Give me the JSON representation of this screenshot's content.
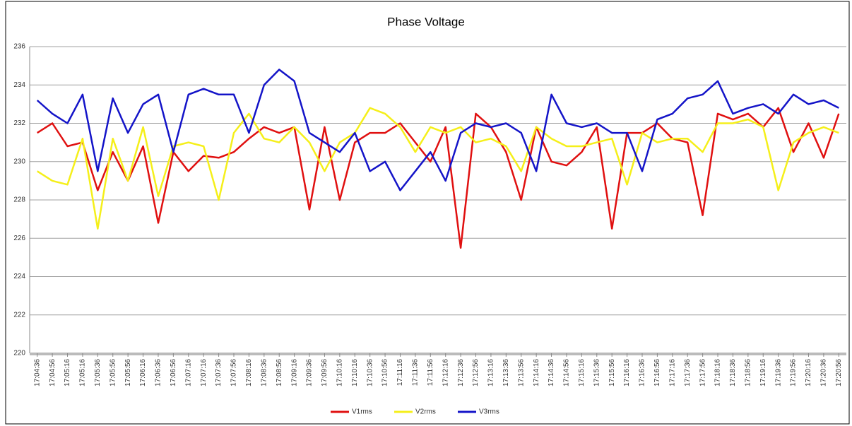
{
  "chart_data": {
    "type": "line",
    "title": "Phase Voltage",
    "categories": [
      "17:04:36",
      "17:04:56",
      "17:05:16",
      "17:05:16",
      "17:05:36",
      "17:05:56",
      "17:05:56",
      "17:06:16",
      "17:06:36",
      "17:06:56",
      "17:07:16",
      "17:07:16",
      "17:07:36",
      "17:07:56",
      "17:08:16",
      "17:08:36",
      "17:08:56",
      "17:09:16",
      "17:09:36",
      "17:09:56",
      "17:10:16",
      "17:10:16",
      "17:10:36",
      "17:10:56",
      "17:11:16",
      "17:11:36",
      "17:11:56",
      "17:12:16",
      "17:12:36",
      "17:12:56",
      "17:13:16",
      "17:13:36",
      "17:13:56",
      "17:14:16",
      "17:14:36",
      "17:14:56",
      "17:15:16",
      "17:15:36",
      "17:15:56",
      "17:16:16",
      "17:16:36",
      "17:16:56",
      "17:17:16",
      "17:17:36",
      "17:17:56",
      "17:18:16",
      "17:18:36",
      "17:18:56",
      "17:19:16",
      "17:19:36",
      "17:19:56",
      "17:20:16",
      "17:20:36",
      "17:20:56"
    ],
    "series": [
      {
        "name": "V1rms",
        "color": "#e01010",
        "values": [
          231.5,
          232,
          230.8,
          231,
          228.5,
          230.5,
          229,
          230.8,
          226.8,
          230.5,
          229.5,
          230.3,
          230.2,
          230.5,
          231.2,
          231.8,
          231.5,
          231.8,
          227.5,
          231.8,
          228,
          231,
          231.5,
          231.5,
          232,
          231,
          230,
          231.8,
          225.5,
          232.5,
          231.8,
          230.5,
          228,
          231.8,
          230,
          229.8,
          230.5,
          231.8,
          226.5,
          231.5,
          231.5,
          232,
          231.2,
          231,
          227.2,
          232.5,
          232.2,
          232.5,
          231.8,
          232.8,
          230.5,
          232,
          230.2,
          232.5
        ]
      },
      {
        "name": "V2rms",
        "color": "#f5ef1a",
        "values": [
          229.5,
          229,
          228.8,
          231.2,
          226.5,
          231.2,
          229,
          231.8,
          228.2,
          230.8,
          231,
          230.8,
          228,
          231.5,
          232.5,
          231.2,
          231,
          231.8,
          231,
          229.5,
          231,
          231.5,
          232.8,
          232.5,
          231.8,
          230.5,
          231.8,
          231.5,
          231.8,
          231,
          231.2,
          230.8,
          229.5,
          231.8,
          231.2,
          230.8,
          230.8,
          231,
          231.2,
          228.8,
          231.5,
          231,
          231.2,
          231.2,
          230.5,
          232,
          232,
          232.2,
          231.8,
          228.5,
          231,
          231.5,
          231.8,
          231.5
        ]
      },
      {
        "name": "V3rms",
        "color": "#1414c8",
        "values": [
          233.2,
          232.5,
          232,
          233.5,
          229.5,
          233.3,
          231.5,
          233,
          233.5,
          230.5,
          233.5,
          233.8,
          233.5,
          233.5,
          231.5,
          234,
          234.8,
          234.2,
          231.5,
          231,
          230.5,
          231.5,
          229.5,
          230,
          228.5,
          229.5,
          230.5,
          229,
          231.5,
          232,
          231.8,
          232,
          231.5,
          229.5,
          233.5,
          232,
          231.8,
          232,
          231.5,
          231.5,
          229.5,
          232.2,
          232.5,
          233.3,
          233.5,
          234.2,
          232.5,
          232.8,
          233,
          232.5,
          233.5,
          233,
          233.2,
          232.8
        ]
      }
    ],
    "ylim": [
      220,
      236
    ],
    "yticks": [
      220,
      222,
      224,
      226,
      228,
      230,
      232,
      234,
      236
    ],
    "grid": true,
    "legend": "bottom"
  }
}
